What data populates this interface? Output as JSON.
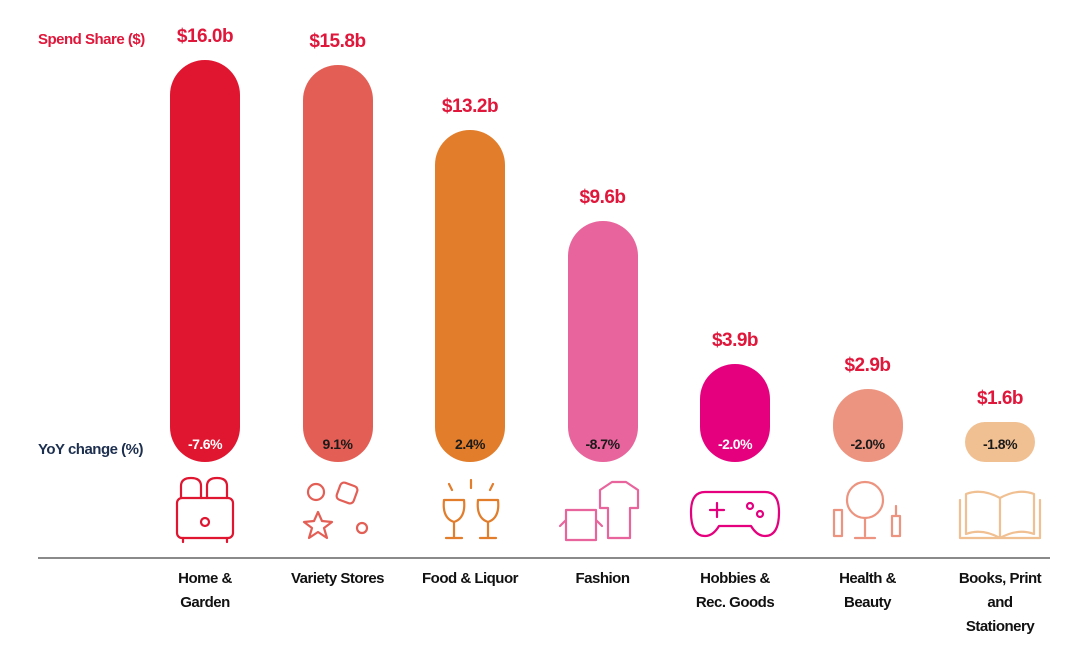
{
  "chart_data": {
    "type": "bar",
    "y_label": "Spend Share ($)",
    "change_label": "YoY change (%)",
    "categories": [
      "Home & Garden",
      "Variety Stores",
      "Food & Liquor",
      "Fashion",
      "Hobbies & Rec. Goods",
      "Health & Beauty",
      "Books, Print and Stationery"
    ],
    "values": [
      16.0,
      15.8,
      13.2,
      9.6,
      3.9,
      2.9,
      1.6
    ],
    "value_labels": [
      "$16.0b",
      "$15.8b",
      "$13.2b",
      "$9.6b",
      "$3.9b",
      "$2.9b",
      "$1.6b"
    ],
    "colors": [
      "#e0152f",
      "#e35f55",
      "#e17d2b",
      "#e8649c",
      "#e5007e",
      "#ec9480",
      "#f0c092"
    ],
    "change": {
      "values": [
        -7.6,
        9.1,
        2.4,
        -8.7,
        -2.0,
        -2.0,
        -1.8
      ],
      "value_labels": [
        "-7.6%",
        "9.1%",
        "2.4%",
        "-8.7%",
        "-2.0%",
        "-2.0%",
        "-1.8%"
      ]
    }
  }
}
